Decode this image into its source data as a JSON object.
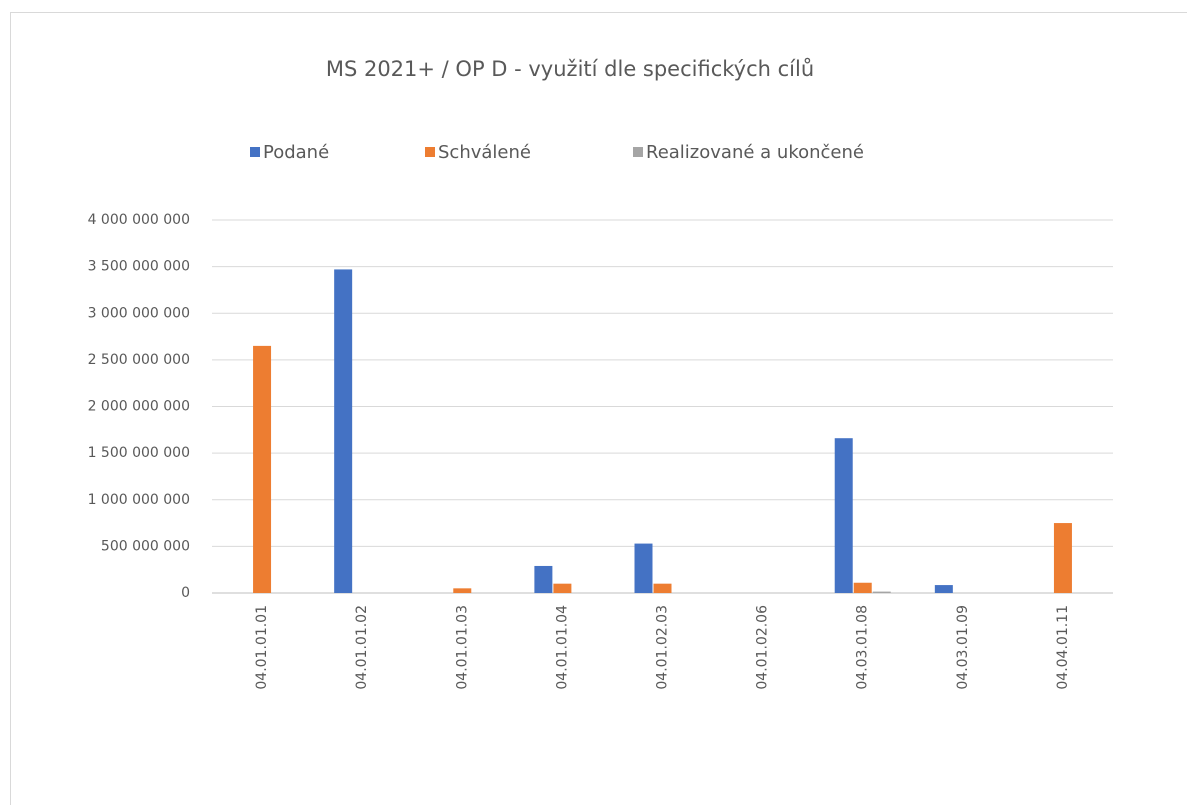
{
  "chart_data": {
    "type": "bar",
    "title": "MS 2021+  /   OP D - využití dle specifických cílů",
    "categories": [
      "04.01.01.01",
      "04.01.01.02",
      "04.01.01.03",
      "04.01.01.04",
      "04.01.02.03",
      "04.01.02.06",
      "04.03.01.08",
      "04.03.01.09",
      "04.04.01.11"
    ],
    "series": [
      {
        "name": "Podané",
        "color": "#4472c4",
        "values": [
          0,
          3470000000,
          0,
          290000000,
          530000000,
          0,
          1660000000,
          85000000,
          0
        ]
      },
      {
        "name": "Schválené",
        "color": "#ed7d31",
        "values": [
          2650000000,
          0,
          50000000,
          100000000,
          100000000,
          0,
          110000000,
          0,
          750000000
        ]
      },
      {
        "name": "Realizované a ukončené",
        "color": "#a5a5a5",
        "values": [
          0,
          0,
          0,
          0,
          0,
          0,
          15000000,
          0,
          0
        ]
      }
    ],
    "ylim": [
      0,
      4000000000
    ],
    "yticks": [
      0,
      {
        "value": 500000000,
        "label": "500 000 000"
      },
      {
        "value": 1000000000,
        "label": "1 000 000 000"
      },
      {
        "value": 1500000000,
        "label": "1 500 000 000"
      },
      {
        "value": 2000000000,
        "label": "2 000 000 000"
      },
      {
        "value": 2500000000,
        "label": "2 500 000 000"
      },
      {
        "value": 3000000000,
        "label": "3 000 000 000"
      },
      {
        "value": 3500000000,
        "label": "3 500 000 000"
      },
      {
        "value": 4000000000,
        "label": "4 000 000 000"
      }
    ],
    "grid": true,
    "legend": "top"
  }
}
